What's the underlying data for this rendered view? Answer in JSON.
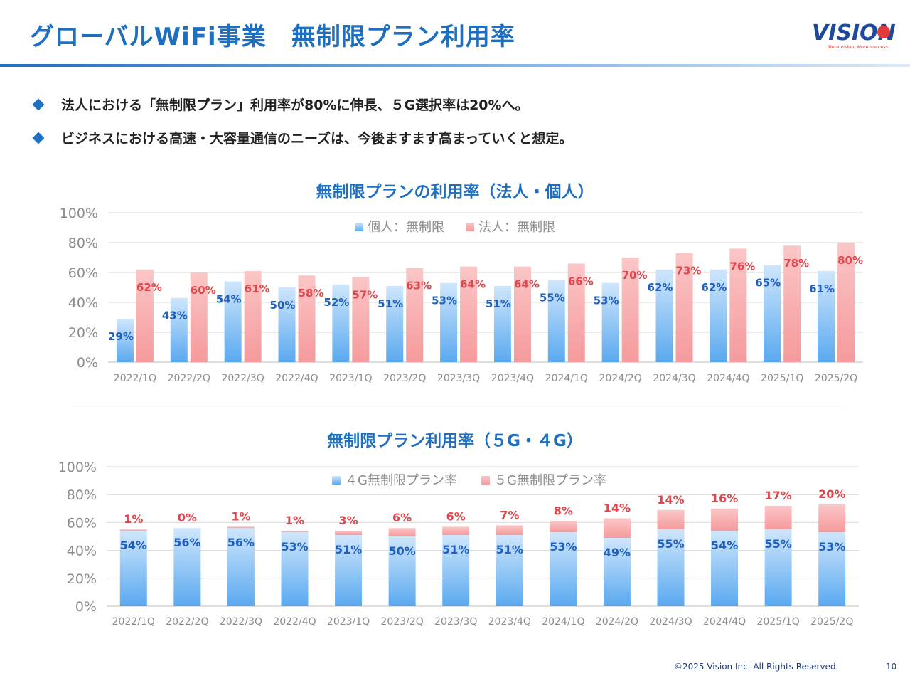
{
  "header": {
    "title": "グローバルWiFi事業　無制限プラン利用率",
    "logo_text": "VISION",
    "logo_tagline": "More vision, More success."
  },
  "bullets": [
    "法人における「無制限プラン」利用率が80%に伸長、５G選択率は20%へ。",
    "ビジネスにおける高速・大容量通信のニーズは、今後ますます高まっていくと想定。"
  ],
  "colors": {
    "accent": "#1f6fc0",
    "blue_bar": "#5aa9f0",
    "red_bar": "#f59a9c",
    "blue_label": "#1f5fbf",
    "red_label": "#e0474c"
  },
  "chart_data": [
    {
      "type": "bar",
      "title": "無制限プランの利用率（法人・個人）",
      "categories": [
        "2022/1Q",
        "2022/2Q",
        "2022/3Q",
        "2022/4Q",
        "2023/1Q",
        "2023/2Q",
        "2023/3Q",
        "2023/4Q",
        "2024/1Q",
        "2024/2Q",
        "2024/3Q",
        "2024/4Q",
        "2025/1Q",
        "2025/2Q"
      ],
      "series": [
        {
          "name": "個人：無制限",
          "values": [
            29,
            43,
            54,
            50,
            52,
            51,
            53,
            51,
            55,
            53,
            62,
            62,
            65,
            61
          ]
        },
        {
          "name": "法人：無制限",
          "values": [
            62,
            60,
            61,
            58,
            57,
            63,
            64,
            64,
            66,
            70,
            73,
            76,
            78,
            80
          ]
        }
      ],
      "ylim": [
        0,
        100
      ],
      "yticks": [
        "0%",
        "20%",
        "40%",
        "60%",
        "80%",
        "100%"
      ],
      "legend": "top-center",
      "grid": true
    },
    {
      "type": "stacked-bar",
      "title": "無制限プラン利用率（５G・４G）",
      "categories": [
        "2022/1Q",
        "2022/2Q",
        "2022/3Q",
        "2022/4Q",
        "2023/1Q",
        "2023/2Q",
        "2023/3Q",
        "2023/4Q",
        "2024/1Q",
        "2024/2Q",
        "2024/3Q",
        "2024/4Q",
        "2025/1Q",
        "2025/2Q"
      ],
      "series": [
        {
          "name": "４G無制限プラン率",
          "values": [
            54,
            56,
            56,
            53,
            51,
            50,
            51,
            51,
            53,
            49,
            55,
            54,
            55,
            53
          ]
        },
        {
          "name": "５G無制限プラン率",
          "values": [
            1,
            0,
            1,
            1,
            3,
            6,
            6,
            7,
            8,
            14,
            14,
            16,
            17,
            20
          ]
        }
      ],
      "ylim": [
        0,
        100
      ],
      "yticks": [
        "0%",
        "20%",
        "40%",
        "60%",
        "80%",
        "100%"
      ],
      "legend": "top-center",
      "grid": true
    }
  ],
  "footer": {
    "copyright": "©2025 Vision Inc. All Rights Reserved.",
    "page": "10"
  }
}
